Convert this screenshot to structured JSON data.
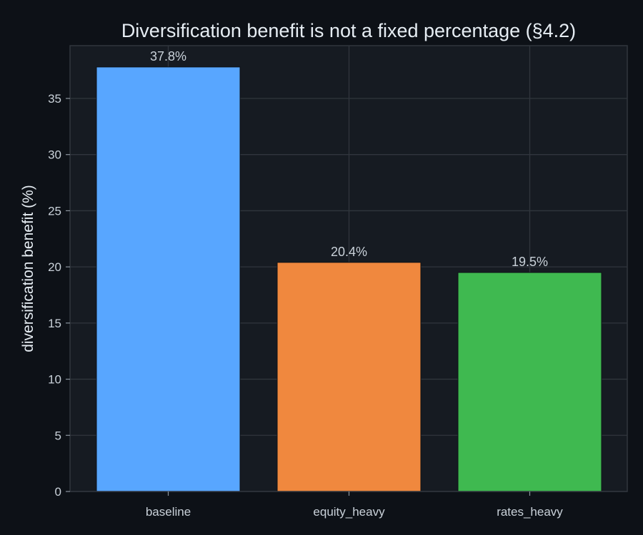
{
  "chart_data": {
    "type": "bar",
    "title": "Diversification benefit is not a fixed percentage (§4.2)",
    "xlabel": "",
    "ylabel": "diversification benefit (%)",
    "categories": [
      "baseline",
      "equity_heavy",
      "rates_heavy"
    ],
    "values": [
      37.8,
      20.4,
      19.5
    ],
    "value_labels": [
      "37.8%",
      "20.4%",
      "19.5%"
    ],
    "colors": [
      "#58a6ff",
      "#f0883e",
      "#3fb950"
    ],
    "ylim": [
      0,
      39.7
    ],
    "yticks": [
      0,
      5,
      10,
      15,
      20,
      25,
      30,
      35
    ],
    "grid": true,
    "legend": "none",
    "background": "#0d1117",
    "plot_background": "#161b22",
    "grid_color": "#30363d"
  }
}
